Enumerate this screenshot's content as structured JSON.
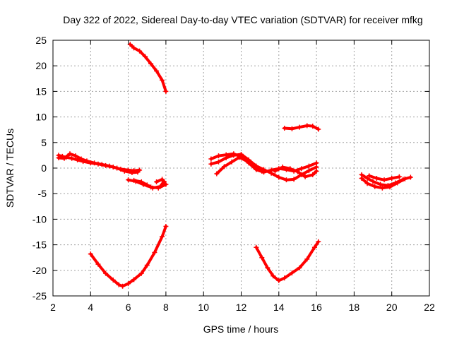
{
  "chart_data": {
    "type": "scatter",
    "title": "Day 322 of 2022, Sidereal Day-to-day VTEC variation (SDTVAR) for receiver mfkg",
    "xlabel": "GPS time / hours",
    "ylabel": "SDTVAR / TECUs",
    "xlim": [
      2,
      22
    ],
    "ylim": [
      -25,
      25
    ],
    "xticks": [
      2,
      4,
      6,
      8,
      10,
      12,
      14,
      16,
      18,
      20,
      22
    ],
    "yticks": [
      -25,
      -20,
      -15,
      -10,
      -5,
      0,
      5,
      10,
      15,
      20,
      25
    ],
    "grid": true,
    "marker_color": "#ff0000",
    "series": [
      {
        "name": "arc-1",
        "points": [
          [
            2.3,
            2.5
          ],
          [
            2.5,
            2.3
          ],
          [
            2.7,
            2.1
          ],
          [
            3.0,
            1.9
          ],
          [
            3.3,
            1.6
          ],
          [
            3.6,
            1.3
          ],
          [
            4.0,
            1.0
          ],
          [
            4.4,
            0.8
          ],
          [
            4.8,
            0.5
          ],
          [
            5.2,
            0.2
          ],
          [
            5.6,
            -0.2
          ],
          [
            6.0,
            -0.4
          ],
          [
            6.3,
            -0.5
          ],
          [
            6.6,
            -0.4
          ]
        ]
      },
      {
        "name": "arc-2",
        "points": [
          [
            2.3,
            2.0
          ],
          [
            2.6,
            1.9
          ],
          [
            2.9,
            2.8
          ],
          [
            3.2,
            2.4
          ],
          [
            3.5,
            1.8
          ],
          [
            3.8,
            1.4
          ],
          [
            4.2,
            1.0
          ],
          [
            4.6,
            0.7
          ],
          [
            5.0,
            0.4
          ],
          [
            5.4,
            0.0
          ],
          [
            5.8,
            -0.6
          ],
          [
            6.2,
            -0.9
          ],
          [
            6.5,
            -0.8
          ]
        ]
      },
      {
        "name": "arc-3",
        "points": [
          [
            6.1,
            24.2
          ],
          [
            6.3,
            23.5
          ],
          [
            6.6,
            22.9
          ],
          [
            6.9,
            21.8
          ],
          [
            7.2,
            20.4
          ],
          [
            7.5,
            19.0
          ],
          [
            7.8,
            17.2
          ],
          [
            8.0,
            15.0
          ]
        ]
      },
      {
        "name": "arc-4",
        "points": [
          [
            6.0,
            -2.3
          ],
          [
            6.4,
            -2.6
          ],
          [
            6.8,
            -3.2
          ],
          [
            7.2,
            -3.7
          ],
          [
            7.6,
            -3.9
          ],
          [
            8.0,
            -3.2
          ],
          [
            7.8,
            -2.2
          ],
          [
            7.5,
            -2.7
          ]
        ]
      },
      {
        "name": "arc-5",
        "points": [
          [
            6.3,
            -2.4
          ],
          [
            6.7,
            -2.7
          ],
          [
            7.0,
            -3.3
          ],
          [
            7.3,
            -3.9
          ],
          [
            7.7,
            -3.6
          ],
          [
            7.9,
            -2.6
          ]
        ]
      },
      {
        "name": "arc-6",
        "points": [
          [
            4.0,
            -16.8
          ],
          [
            4.4,
            -18.8
          ],
          [
            4.8,
            -20.6
          ],
          [
            5.2,
            -21.9
          ],
          [
            5.5,
            -22.8
          ],
          [
            5.7,
            -23.1
          ],
          [
            6.0,
            -22.6
          ],
          [
            6.3,
            -21.8
          ],
          [
            6.7,
            -20.6
          ],
          [
            7.0,
            -19.0
          ],
          [
            7.4,
            -16.5
          ],
          [
            7.8,
            -13.4
          ],
          [
            8.0,
            -11.4
          ]
        ]
      },
      {
        "name": "arc-7",
        "points": [
          [
            10.4,
            0.8
          ],
          [
            10.8,
            1.2
          ],
          [
            11.2,
            2.0
          ],
          [
            11.6,
            2.5
          ],
          [
            12.0,
            2.7
          ],
          [
            12.4,
            1.6
          ],
          [
            12.8,
            0.4
          ],
          [
            13.2,
            -0.3
          ],
          [
            13.6,
            -1.0
          ],
          [
            14.0,
            -1.8
          ],
          [
            14.4,
            -2.3
          ],
          [
            14.8,
            -2.2
          ],
          [
            15.2,
            -1.3
          ],
          [
            15.6,
            -0.5
          ],
          [
            16.0,
            0.2
          ]
        ]
      },
      {
        "name": "arc-8",
        "points": [
          [
            10.4,
            1.8
          ],
          [
            10.8,
            2.4
          ],
          [
            11.2,
            2.6
          ],
          [
            11.6,
            2.8
          ],
          [
            12.0,
            2.2
          ],
          [
            12.4,
            1.0
          ],
          [
            12.8,
            -0.3
          ],
          [
            13.2,
            -0.8
          ],
          [
            13.6,
            -0.4
          ],
          [
            14.0,
            -0.1
          ],
          [
            14.4,
            -0.3
          ],
          [
            14.8,
            -0.6
          ],
          [
            15.2,
            -0.1
          ],
          [
            15.6,
            0.4
          ],
          [
            16.0,
            1.0
          ]
        ]
      },
      {
        "name": "arc-9",
        "points": [
          [
            10.7,
            -1.1
          ],
          [
            11.1,
            0.3
          ],
          [
            11.5,
            1.2
          ],
          [
            11.9,
            2.1
          ],
          [
            12.3,
            1.4
          ],
          [
            12.7,
            0.2
          ],
          [
            13.1,
            -0.6
          ]
        ]
      },
      {
        "name": "arc-10",
        "points": [
          [
            13.8,
            -0.6
          ],
          [
            14.2,
            0.2
          ],
          [
            14.6,
            -0.1
          ],
          [
            15.0,
            -0.7
          ],
          [
            15.4,
            -1.7
          ],
          [
            15.8,
            -1.3
          ],
          [
            16.0,
            -0.6
          ]
        ]
      },
      {
        "name": "arc-11",
        "points": [
          [
            14.3,
            7.8
          ],
          [
            14.7,
            7.7
          ],
          [
            15.1,
            8.0
          ],
          [
            15.5,
            8.3
          ],
          [
            15.8,
            8.2
          ],
          [
            16.1,
            7.6
          ]
        ]
      },
      {
        "name": "arc-12",
        "points": [
          [
            12.8,
            -15.5
          ],
          [
            13.1,
            -17.5
          ],
          [
            13.4,
            -19.5
          ],
          [
            13.7,
            -21.1
          ],
          [
            14.0,
            -22.0
          ],
          [
            14.3,
            -21.5
          ],
          [
            14.7,
            -20.5
          ],
          [
            15.1,
            -19.5
          ],
          [
            15.5,
            -17.8
          ],
          [
            15.9,
            -15.5
          ],
          [
            16.1,
            -14.4
          ]
        ]
      },
      {
        "name": "arc-13",
        "points": [
          [
            18.4,
            -1.3
          ],
          [
            18.7,
            -2.0
          ],
          [
            19.0,
            -2.6
          ],
          [
            19.4,
            -3.2
          ],
          [
            19.8,
            -3.4
          ],
          [
            20.2,
            -2.9
          ],
          [
            20.6,
            -2.2
          ],
          [
            21.0,
            -1.8
          ]
        ]
      },
      {
        "name": "arc-14",
        "points": [
          [
            18.4,
            -2.0
          ],
          [
            18.7,
            -3.0
          ],
          [
            19.1,
            -3.6
          ],
          [
            19.5,
            -3.9
          ],
          [
            19.9,
            -3.7
          ],
          [
            20.3,
            -2.9
          ],
          [
            20.7,
            -2.1
          ]
        ]
      },
      {
        "name": "arc-15",
        "points": [
          [
            18.8,
            -1.5
          ],
          [
            19.2,
            -2.0
          ],
          [
            19.6,
            -2.3
          ],
          [
            20.0,
            -2.0
          ],
          [
            20.4,
            -1.7
          ]
        ]
      }
    ]
  }
}
